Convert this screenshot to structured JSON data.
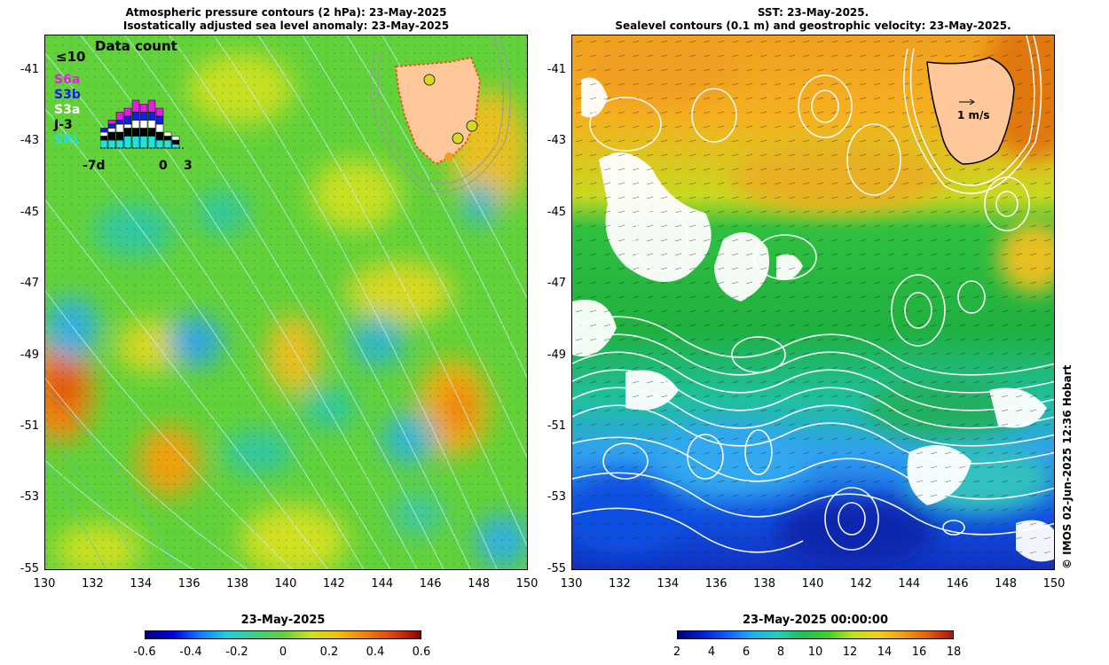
{
  "left_panel": {
    "title_line1": "Atmospheric pressure contours (2 hPa): 23-May-2025",
    "title_line2": "Isostatically adjusted sea level anomaly: 23-May-2025",
    "inset": {
      "title": "Data count",
      "max_label": "≤10",
      "series": [
        {
          "label": "S6a",
          "color": "#e020e0"
        },
        {
          "label": "S3b",
          "color": "#1020e0"
        },
        {
          "label": "S3a",
          "color": "#ffffff"
        },
        {
          "label": "J-3",
          "color": "#000000"
        },
        {
          "label": "SRL",
          "color": "#20e0e0"
        }
      ],
      "x_labels": [
        "-7d",
        "0",
        "3"
      ]
    },
    "colorbar": {
      "title": "23-May-2025",
      "ticks": [
        "-0.6",
        "-0.4",
        "-0.2",
        "0",
        "0.2",
        "0.4",
        "0.6"
      ]
    }
  },
  "right_panel": {
    "title_line1": "SST: 23-May-2025.",
    "title_line2": "Sealevel contours (0.1 m) and geostrophic velocity: 23-May-2025.",
    "velocity_label": "1 m/s",
    "colorbar": {
      "title": "23-May-2025 00:00:00",
      "ticks": [
        "2",
        "4",
        "6",
        "8",
        "10",
        "12",
        "14",
        "16",
        "18"
      ]
    }
  },
  "y_ticks": [
    "-41",
    "-43",
    "-45",
    "-47",
    "-49",
    "-51",
    "-53",
    "-55"
  ],
  "x_ticks": [
    "130",
    "132",
    "134",
    "136",
    "138",
    "140",
    "142",
    "144",
    "146",
    "148",
    "150"
  ],
  "copyright": "© IMOS 02-Jun-2025 12:36 Hobart",
  "colors": {
    "sla_base": "#5fd03a",
    "land": "#ffc89a",
    "sst_warm": "#f0a020",
    "sst_mid": "#20b040",
    "sst_cold": "#1060e0"
  }
}
